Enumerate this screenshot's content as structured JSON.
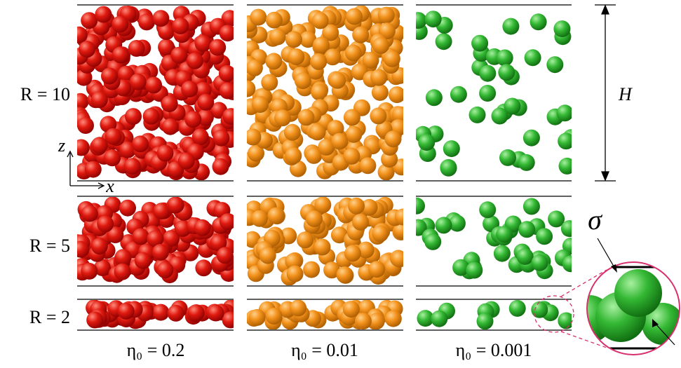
{
  "rows": [
    {
      "label": "R = 10"
    },
    {
      "label": "R = 5"
    },
    {
      "label": "R = 2"
    }
  ],
  "columns": [
    {
      "label": "η₀ = 0.2"
    },
    {
      "label": "η₀ = 0.01"
    },
    {
      "label": "η₀ = 0.001"
    }
  ],
  "axes": {
    "z": "z",
    "x": "x"
  },
  "height_label": "H",
  "diameter_label": "σ"
}
